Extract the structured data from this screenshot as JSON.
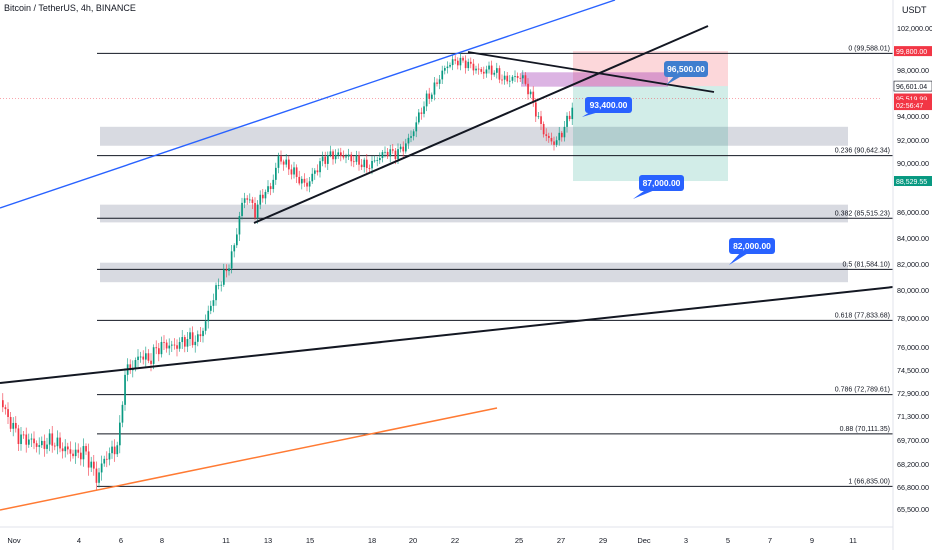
{
  "header": {
    "title": "Bitcoin / TetherUS, 4h, BINANCE",
    "currency": "USDT"
  },
  "chart_data": {
    "type": "candlestick",
    "ylim": [
      65500,
      103200
    ],
    "y_ticks": [
      "102,000.00",
      "100,000.00",
      "98,000.00",
      "94,000.00",
      "92,000.00",
      "90,000.00",
      "86,000.00",
      "84,000.00",
      "82,000.00",
      "80,000.00",
      "78,000.00",
      "76,000.00",
      "74,500.00",
      "72,900.00",
      "71,300.00",
      "69,700.00",
      "68,200.00",
      "66,800.00",
      "65,500.00"
    ],
    "x_ticks": [
      "Nov",
      "4",
      "6",
      "8",
      "11",
      "13",
      "15",
      "18",
      "20",
      "22",
      "25",
      "27",
      "29",
      "Dec",
      "3",
      "5",
      "7",
      "9",
      "11"
    ],
    "fib_levels": [
      {
        "label": "0 (99,588.01)",
        "value": 99588.01
      },
      {
        "label": "0.236 (90,642.34)",
        "value": 90642.34
      },
      {
        "label": "0.382 (85,515.23)",
        "value": 85515.23
      },
      {
        "label": "0.5 (81,584.10)",
        "value": 81584.1
      },
      {
        "label": "0.618 (77,833.68)",
        "value": 77833.68
      },
      {
        "label": "0.786 (72,789.61)",
        "value": 72789.61
      },
      {
        "label": "0.88 (70,111.35)",
        "value": 70111.35
      },
      {
        "label": "1 (66,835.00)",
        "value": 66835.0
      }
    ],
    "price_tags": [
      {
        "text": "99,800.00",
        "value": 99800,
        "color": "#f23645"
      },
      {
        "text": "96,601.04",
        "value": 96601.04,
        "color": "#ffffff"
      },
      {
        "text": "95,519.99",
        "value": 95519.99,
        "color": "#f23645"
      },
      {
        "text": "02:56:47",
        "value": 94950,
        "color": "#f23645"
      },
      {
        "text": "88,529.55",
        "value": 88529.55,
        "color": "#089981"
      }
    ],
    "annotations": [
      {
        "text": "96,500.00",
        "color": "#3f7ecf"
      },
      {
        "text": "93,400.00",
        "color": "#2962ff"
      },
      {
        "text": "87,000.00",
        "color": "#2962ff"
      },
      {
        "text": "82,000.00",
        "color": "#2962ff"
      }
    ],
    "colors": {
      "up": "#089981",
      "down": "#f23645",
      "channel": "#2962ff",
      "support": "#ff7a33",
      "trend": "#131722"
    }
  }
}
